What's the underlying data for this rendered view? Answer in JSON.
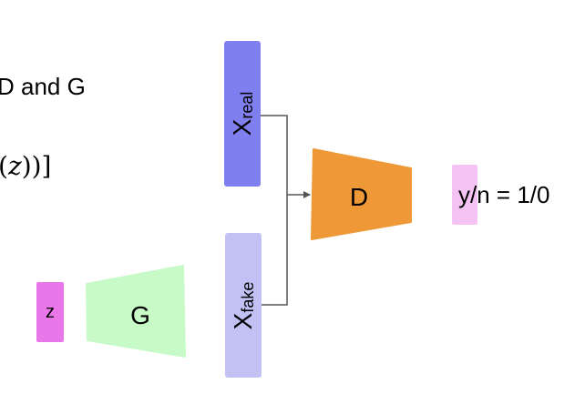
{
  "text": {
    "top_line": "D and G",
    "formula_z": "z",
    "formula_close": "))]"
  },
  "nodes": {
    "z": {
      "label": "z",
      "color": "#ea77ea"
    },
    "G": {
      "label": "G",
      "color": "#c8fac8"
    },
    "D": {
      "label": "D",
      "color": "#ee9837"
    },
    "x_real": {
      "base": "X",
      "sub": "real",
      "color": "#7f7ff0"
    },
    "x_fake": {
      "base": "X",
      "sub": "fake",
      "color": "#c1c1f4"
    },
    "output": {
      "label": "y/n = 1/0",
      "color": "#f4c3f4"
    }
  },
  "colors": {
    "connector": "#555555"
  }
}
